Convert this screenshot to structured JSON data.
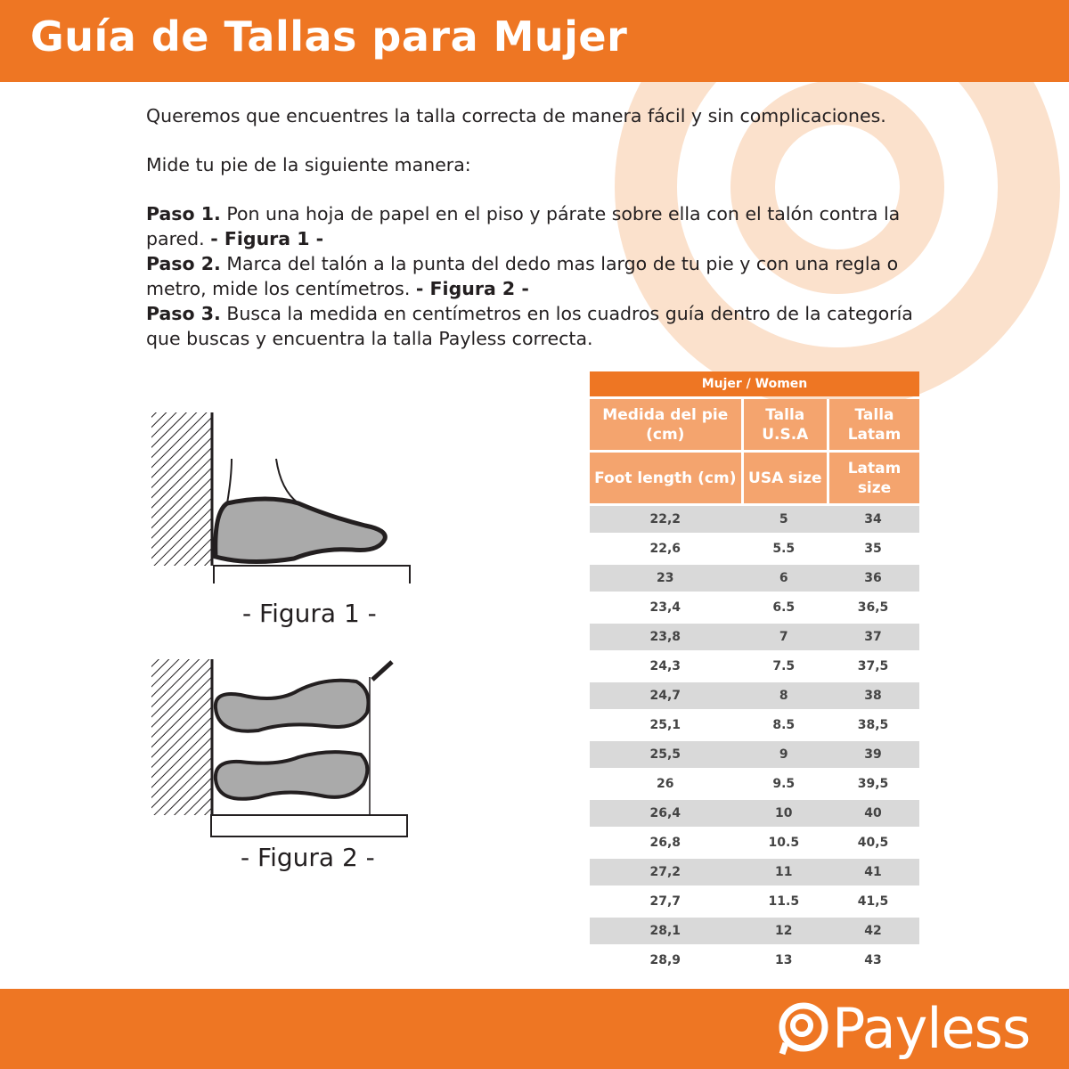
{
  "header": {
    "title": "Guía de Tallas para Mujer"
  },
  "intro": {
    "line1": "Queremos que encuentres la talla correcta de manera fácil y sin complicaciones.",
    "line2": "Mide tu pie de la siguiente manera:",
    "steps": [
      {
        "label": "Paso 1.",
        "text": " Pon una hoja de papel en el piso y párate sobre ella con el talón contra la pared. ",
        "ref": "- Figura 1 -"
      },
      {
        "label": "Paso 2.",
        "text": " Marca del talón a la punta del dedo mas largo de tu pie y con una regla o metro, mide los centímetros. ",
        "ref": "- Figura 2 -",
        "tail": " -"
      },
      {
        "label": "Paso 3.",
        "text": " Busca la medida en centímetros en los cuadros guía dentro de la categoría que buscas y encuentra la talla Payless correcta."
      }
    ]
  },
  "figures": {
    "fig1": "- Figura 1 -",
    "fig2": "- Figura 2 -"
  },
  "table": {
    "title": "Mujer / Women",
    "headers_es": [
      "Medida del pie (cm)",
      "Talla U.S.A",
      "Talla Latam"
    ],
    "headers_en": [
      "Foot length (cm)",
      "USA size",
      "Latam size"
    ],
    "rows": [
      [
        "22,2",
        "5",
        "34"
      ],
      [
        "22,6",
        "5.5",
        "35"
      ],
      [
        "23",
        "6",
        "36"
      ],
      [
        "23,4",
        "6.5",
        "36,5"
      ],
      [
        "23,8",
        "7",
        "37"
      ],
      [
        "24,3",
        "7.5",
        "37,5"
      ],
      [
        "24,7",
        "8",
        "38"
      ],
      [
        "25,1",
        "8.5",
        "38,5"
      ],
      [
        "25,5",
        "9",
        "39"
      ],
      [
        "26",
        "9.5",
        "39,5"
      ],
      [
        "26,4",
        "10",
        "40"
      ],
      [
        "26,8",
        "10.5",
        "40,5"
      ],
      [
        "27,2",
        "11",
        "41"
      ],
      [
        "27,7",
        "11.5",
        "41,5"
      ],
      [
        "28,1",
        "12",
        "42"
      ],
      [
        "28,9",
        "13",
        "43"
      ]
    ]
  },
  "footer": {
    "logo": "Payless"
  },
  "colors": {
    "brand": "#ee7623",
    "header_cell": "#f4a46e",
    "stripe": "#d9d9d9"
  }
}
